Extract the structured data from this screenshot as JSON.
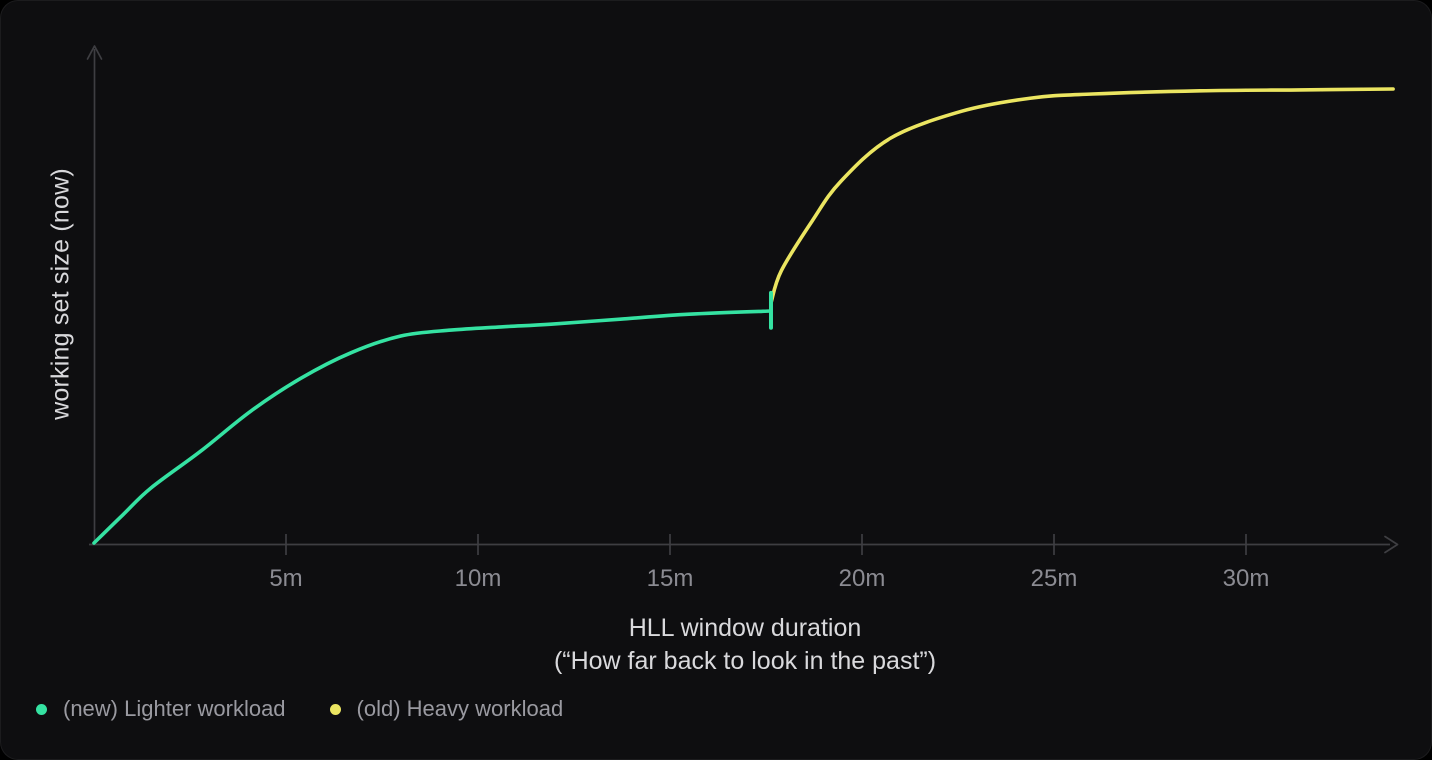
{
  "chart_data": {
    "type": "line",
    "title": "",
    "xlabel_line1": "HLL window duration",
    "xlabel_line2": "(“How far back to look in the past”)",
    "ylabel": "working set size (now)",
    "x_unit": "minutes",
    "xlim": [
      0,
      34
    ],
    "ylim_relative": [
      0,
      1
    ],
    "grid": false,
    "legend_position": "bottom-left",
    "x_ticks": [
      {
        "value": 5,
        "label": "5m"
      },
      {
        "value": 10,
        "label": "10m"
      },
      {
        "value": 15,
        "label": "15m"
      },
      {
        "value": 20,
        "label": "20m"
      },
      {
        "value": 25,
        "label": "25m"
      },
      {
        "value": 30,
        "label": "30m"
      }
    ],
    "series": [
      {
        "name": "(new) Lighter workload",
        "color": "#35e2a2",
        "points": [
          [
            0,
            0
          ],
          [
            0.75,
            0.062
          ],
          [
            1.48,
            0.121
          ],
          [
            2.79,
            0.203
          ],
          [
            4.09,
            0.291
          ],
          [
            5.39,
            0.363
          ],
          [
            6.69,
            0.419
          ],
          [
            7.99,
            0.456
          ],
          [
            9.3,
            0.469
          ],
          [
            10.6,
            0.476
          ],
          [
            11.9,
            0.482
          ],
          [
            13.7,
            0.493
          ],
          [
            15.5,
            0.504
          ],
          [
            17.63,
            0.511
          ]
        ]
      },
      {
        "name": "(old) Heavy workload",
        "color": "#ebe561",
        "points": [
          [
            17.63,
            0.529
          ],
          [
            17.9,
            0.6
          ],
          [
            18.7,
            0.709
          ],
          [
            19.45,
            0.797
          ],
          [
            20.75,
            0.892
          ],
          [
            22.6,
            0.951
          ],
          [
            24.4,
            0.98
          ],
          [
            26.0,
            0.989
          ],
          [
            28.8,
            0.996
          ],
          [
            31.4,
            0.998
          ],
          [
            33.83,
            1.0
          ]
        ]
      }
    ],
    "annotations": [
      {
        "type": "vertical-end-cap",
        "series": "(new) Lighter workload",
        "x": 17.63,
        "y_from": 0.474,
        "y_to": 0.551
      }
    ]
  },
  "appearance": {
    "page_background": "#000000",
    "card_background": "#0e0e10",
    "axis_color": "#3e3e42",
    "tick_label_color": "#8b8b92",
    "title_text_color": "#d9d9dc",
    "legend_text_color": "#9a9aa1",
    "green_series_color": "#35e2a2",
    "yellow_series_color": "#ebe561"
  }
}
